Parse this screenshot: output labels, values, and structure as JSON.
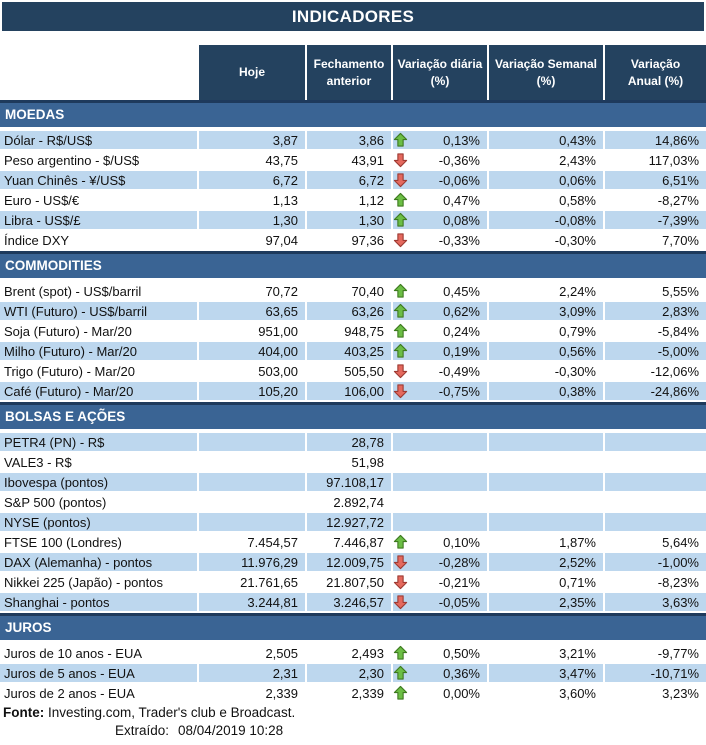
{
  "title": "INDICADORES",
  "columns": [
    {
      "label": ""
    },
    {
      "label": "Hoje"
    },
    {
      "label": "Fechamento\nanterior"
    },
    {
      "label": "Variação diária\n(%)"
    },
    {
      "label": "Variação Semanal\n(%)"
    },
    {
      "label": "Variação\nAnual (%)"
    }
  ],
  "sections": [
    {
      "name": "MOEDAS",
      "rows": [
        {
          "label": "Dólar - R$/US$",
          "hoje": "3,87",
          "fechamento": "3,86",
          "arrow": "up",
          "var_diaria": "0,13%",
          "var_semanal": "0,43%",
          "var_anual": "14,86%"
        },
        {
          "label": "Peso argentino - $/US$",
          "hoje": "43,75",
          "fechamento": "43,91",
          "arrow": "down",
          "var_diaria": "-0,36%",
          "var_semanal": "2,43%",
          "var_anual": "117,03%"
        },
        {
          "label": "Yuan Chinês - ¥/US$",
          "hoje": "6,72",
          "fechamento": "6,72",
          "arrow": "down",
          "var_diaria": "-0,06%",
          "var_semanal": "0,06%",
          "var_anual": "6,51%"
        },
        {
          "label": "Euro - US$/€",
          "hoje": "1,13",
          "fechamento": "1,12",
          "arrow": "up",
          "var_diaria": "0,47%",
          "var_semanal": "0,58%",
          "var_anual": "-8,27%"
        },
        {
          "label": "Libra - US$/£",
          "hoje": "1,30",
          "fechamento": "1,30",
          "arrow": "up",
          "var_diaria": "0,08%",
          "var_semanal": "-0,08%",
          "var_anual": "-7,39%"
        },
        {
          "label": "Índice DXY",
          "hoje": "97,04",
          "fechamento": "97,36",
          "arrow": "down",
          "var_diaria": "-0,33%",
          "var_semanal": "-0,30%",
          "var_anual": "7,70%"
        }
      ]
    },
    {
      "name": "COMMODITIES",
      "rows": [
        {
          "label": "Brent (spot) - US$/barril",
          "hoje": "70,72",
          "fechamento": "70,40",
          "arrow": "up",
          "var_diaria": "0,45%",
          "var_semanal": "2,24%",
          "var_anual": "5,55%"
        },
        {
          "label": "WTI (Futuro) - US$/barril",
          "hoje": "63,65",
          "fechamento": "63,26",
          "arrow": "up",
          "var_diaria": "0,62%",
          "var_semanal": "3,09%",
          "var_anual": "2,83%"
        },
        {
          "label": "Soja (Futuro) - Mar/20",
          "hoje": "951,00",
          "fechamento": "948,75",
          "arrow": "up",
          "var_diaria": "0,24%",
          "var_semanal": "0,79%",
          "var_anual": "-5,84%"
        },
        {
          "label": "Milho (Futuro) - Mar/20",
          "hoje": "404,00",
          "fechamento": "403,25",
          "arrow": "up",
          "var_diaria": "0,19%",
          "var_semanal": "0,56%",
          "var_anual": "-5,00%"
        },
        {
          "label": "Trigo (Futuro) - Mar/20",
          "hoje": "503,00",
          "fechamento": "505,50",
          "arrow": "down",
          "var_diaria": "-0,49%",
          "var_semanal": "-0,30%",
          "var_anual": "-12,06%"
        },
        {
          "label": "Café (Futuro) - Mar/20",
          "hoje": "105,20",
          "fechamento": "106,00",
          "arrow": "down",
          "var_diaria": "-0,75%",
          "var_semanal": "0,38%",
          "var_anual": "-24,86%"
        }
      ]
    },
    {
      "name": "BOLSAS E AÇÕES",
      "rows": [
        {
          "label": "PETR4 (PN) - R$",
          "hoje": "",
          "fechamento": "28,78",
          "arrow": "",
          "var_diaria": "",
          "var_semanal": "",
          "var_anual": ""
        },
        {
          "label": "VALE3 - R$",
          "hoje": "",
          "fechamento": "51,98",
          "arrow": "",
          "var_diaria": "",
          "var_semanal": "",
          "var_anual": ""
        },
        {
          "label": "Ibovespa (pontos)",
          "hoje": "",
          "fechamento": "97.108,17",
          "arrow": "",
          "var_diaria": "",
          "var_semanal": "",
          "var_anual": ""
        },
        {
          "label": "S&P 500 (pontos)",
          "hoje": "",
          "fechamento": "2.892,74",
          "arrow": "",
          "var_diaria": "",
          "var_semanal": "",
          "var_anual": ""
        },
        {
          "label": "NYSE (pontos)",
          "hoje": "",
          "fechamento": "12.927,72",
          "arrow": "",
          "var_diaria": "",
          "var_semanal": "",
          "var_anual": ""
        },
        {
          "label": "FTSE 100 (Londres)",
          "hoje": "7.454,57",
          "fechamento": "7.446,87",
          "arrow": "up",
          "var_diaria": "0,10%",
          "var_semanal": "1,87%",
          "var_anual": "5,64%"
        },
        {
          "label": "DAX (Alemanha) - pontos",
          "hoje": "11.976,29",
          "fechamento": "12.009,75",
          "arrow": "down",
          "var_diaria": "-0,28%",
          "var_semanal": "2,52%",
          "var_anual": "-1,00%"
        },
        {
          "label": "Nikkei 225 (Japão) - pontos",
          "hoje": "21.761,65",
          "fechamento": "21.807,50",
          "arrow": "down",
          "var_diaria": "-0,21%",
          "var_semanal": "0,71%",
          "var_anual": "-8,23%"
        },
        {
          "label": "Shanghai - pontos",
          "hoje": "3.244,81",
          "fechamento": "3.246,57",
          "arrow": "down",
          "var_diaria": "-0,05%",
          "var_semanal": "2,35%",
          "var_anual": "3,63%"
        }
      ]
    },
    {
      "name": "JUROS",
      "rows": [
        {
          "label": "Juros de 10 anos - EUA",
          "hoje": "2,505",
          "fechamento": "2,493",
          "arrow": "up",
          "var_diaria": "0,50%",
          "var_semanal": "3,21%",
          "var_anual": "-9,77%"
        },
        {
          "label": "Juros de 5 anos - EUA",
          "hoje": "2,31",
          "fechamento": "2,30",
          "arrow": "up",
          "var_diaria": "0,36%",
          "var_semanal": "3,47%",
          "var_anual": "-10,71%"
        },
        {
          "label": "Juros de 2 anos - EUA",
          "hoje": "2,339",
          "fechamento": "2,339",
          "arrow": "up",
          "var_diaria": "0,00%",
          "var_semanal": "3,60%",
          "var_anual": "3,23%"
        }
      ]
    }
  ],
  "footer": {
    "fonte_label": "Fonte:",
    "fonte_text": " Investing.com, Trader's club e Broadcast.",
    "extraido_label": "Extraído:",
    "extraido_value": "08/04/2019 10:28"
  },
  "icons": {
    "up": "up-arrow-icon",
    "down": "down-arrow-icon"
  },
  "colors": {
    "header_navy": "#24425F",
    "section_edge": "#1E3A5C",
    "section_blue": "#3A6494",
    "row_shaded": "#BDD7EE",
    "up_fill": "#6CBE45",
    "up_stroke": "#3E7A20",
    "down_fill": "#E4695E",
    "down_stroke": "#9E3B33"
  }
}
